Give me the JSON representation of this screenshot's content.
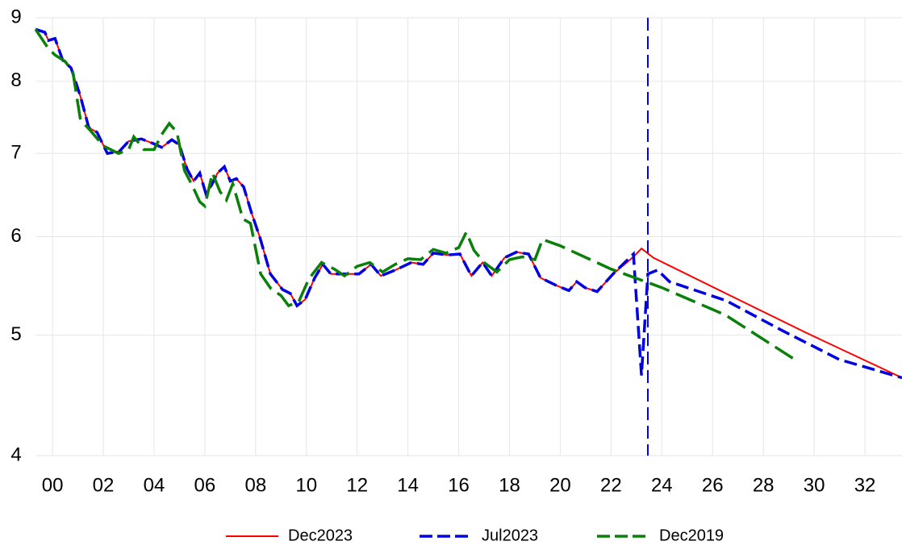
{
  "chart_data": {
    "type": "line",
    "log_y": true,
    "grid": true,
    "legend": "bottom",
    "xlim": [
      1999.33,
      2033.46
    ],
    "ylim": [
      4,
      9
    ],
    "xticks": [
      {
        "value": 2000,
        "label": "00"
      },
      {
        "value": 2002,
        "label": "02"
      },
      {
        "value": 2004,
        "label": "04"
      },
      {
        "value": 2006,
        "label": "06"
      },
      {
        "value": 2008,
        "label": "08"
      },
      {
        "value": 2010,
        "label": "10"
      },
      {
        "value": 2012,
        "label": "12"
      },
      {
        "value": 2014,
        "label": "14"
      },
      {
        "value": 2016,
        "label": "16"
      },
      {
        "value": 2018,
        "label": "18"
      },
      {
        "value": 2020,
        "label": "20"
      },
      {
        "value": 2022,
        "label": "22"
      },
      {
        "value": 2024,
        "label": "24"
      },
      {
        "value": 2026,
        "label": "26"
      },
      {
        "value": 2028,
        "label": "28"
      },
      {
        "value": 2030,
        "label": "30"
      },
      {
        "value": 2032,
        "label": "32"
      }
    ],
    "yticks": [
      4,
      5,
      6,
      7,
      8,
      9
    ],
    "vline": {
      "x": 2023.45,
      "color": "#0000e0"
    },
    "series": [
      {
        "name": "Dec2023",
        "color": "#ff0000",
        "dash": "none",
        "x": [
          1999.33,
          1999.7,
          1999.84,
          2000.1,
          2000.4,
          2000.73,
          2001.1,
          2001.43,
          2001.75,
          2002.16,
          2002.64,
          2003.0,
          2003.5,
          2003.97,
          2004.3,
          2004.7,
          2005.0,
          2005.3,
          2005.56,
          2005.8,
          2006.04,
          2006.26,
          2006.5,
          2006.77,
          2007.0,
          2007.24,
          2007.53,
          2007.85,
          2008.17,
          2008.58,
          2009.06,
          2009.37,
          2009.63,
          2009.95,
          2010.33,
          2010.65,
          2010.96,
          2011.3,
          2012.07,
          2012.55,
          2012.93,
          2013.5,
          2014.14,
          2014.6,
          2015.0,
          2015.56,
          2016.05,
          2016.5,
          2016.94,
          2017.3,
          2017.8,
          2018.27,
          2018.75,
          2019.22,
          2019.86,
          2020.34,
          2020.65,
          2020.97,
          2021.45,
          2022.08,
          2022.88,
          2023.2,
          2023.67,
          2026.53,
          2029.7,
          2033.46
        ],
        "values": [
          8.81,
          8.76,
          8.63,
          8.66,
          8.32,
          8.2,
          7.78,
          7.34,
          7.28,
          7.0,
          7.03,
          7.16,
          7.19,
          7.13,
          7.08,
          7.18,
          7.11,
          6.8,
          6.65,
          6.75,
          6.5,
          6.6,
          6.75,
          6.83,
          6.65,
          6.68,
          6.58,
          6.26,
          5.99,
          5.6,
          5.44,
          5.4,
          5.28,
          5.34,
          5.56,
          5.7,
          5.6,
          5.6,
          5.6,
          5.7,
          5.58,
          5.64,
          5.72,
          5.7,
          5.82,
          5.8,
          5.81,
          5.58,
          5.72,
          5.58,
          5.77,
          5.83,
          5.81,
          5.56,
          5.48,
          5.43,
          5.52,
          5.46,
          5.42,
          5.6,
          5.78,
          5.87,
          5.77,
          5.4,
          5.02,
          4.62
        ]
      },
      {
        "name": "Jul2023",
        "color": "#0000e0",
        "dash": "16,7",
        "x": [
          1999.33,
          1999.7,
          1999.84,
          2000.1,
          2000.4,
          2000.73,
          2001.1,
          2001.43,
          2001.75,
          2002.16,
          2002.64,
          2003.0,
          2003.5,
          2003.97,
          2004.3,
          2004.7,
          2005.0,
          2005.3,
          2005.56,
          2005.8,
          2006.04,
          2006.26,
          2006.5,
          2006.77,
          2007.0,
          2007.24,
          2007.53,
          2007.85,
          2008.17,
          2008.58,
          2009.06,
          2009.37,
          2009.63,
          2009.95,
          2010.33,
          2010.65,
          2010.96,
          2011.3,
          2012.07,
          2012.55,
          2012.93,
          2013.5,
          2014.14,
          2014.6,
          2015.0,
          2015.56,
          2016.05,
          2016.5,
          2016.94,
          2017.3,
          2017.8,
          2018.27,
          2018.75,
          2019.22,
          2019.86,
          2020.34,
          2020.65,
          2020.97,
          2021.45,
          2022.08,
          2022.88,
          2023.2,
          2023.45,
          2023.83,
          2024.3,
          2026.53,
          2028.76,
          2030.98,
          2033.46
        ],
        "values": [
          8.81,
          8.76,
          8.63,
          8.66,
          8.32,
          8.2,
          7.78,
          7.34,
          7.28,
          7.0,
          7.03,
          7.16,
          7.19,
          7.13,
          7.08,
          7.18,
          7.11,
          6.8,
          6.65,
          6.75,
          6.5,
          6.6,
          6.75,
          6.83,
          6.65,
          6.68,
          6.58,
          6.26,
          5.99,
          5.6,
          5.44,
          5.4,
          5.28,
          5.34,
          5.56,
          5.7,
          5.6,
          5.6,
          5.6,
          5.7,
          5.58,
          5.64,
          5.72,
          5.7,
          5.82,
          5.8,
          5.81,
          5.58,
          5.72,
          5.58,
          5.77,
          5.83,
          5.81,
          5.56,
          5.48,
          5.43,
          5.52,
          5.46,
          5.42,
          5.6,
          5.81,
          4.64,
          5.6,
          5.64,
          5.52,
          5.33,
          5.04,
          4.78,
          4.62
        ]
      },
      {
        "name": "Dec2019",
        "color": "#0a800a",
        "dash": "26,9",
        "x": [
          1999.33,
          1999.84,
          2000.1,
          2000.5,
          2000.8,
          2001.1,
          2001.5,
          2002.0,
          2002.6,
          2003.0,
          2003.2,
          2003.6,
          2004.0,
          2004.3,
          2004.6,
          2004.9,
          2005.2,
          2005.5,
          2005.8,
          2006.0,
          2006.3,
          2006.6,
          2006.85,
          2007.1,
          2007.5,
          2007.8,
          2008.2,
          2008.6,
          2009.0,
          2009.3,
          2009.7,
          2010.1,
          2010.6,
          2011.1,
          2011.5,
          2012.0,
          2012.5,
          2013.0,
          2013.5,
          2014.0,
          2014.5,
          2015.0,
          2015.5,
          2016.0,
          2016.3,
          2016.6,
          2017.0,
          2017.5,
          2018.0,
          2018.5,
          2019.0,
          2019.3,
          2020.0,
          2022.0,
          2024.0,
          2026.5,
          2029.23
        ],
        "values": [
          8.81,
          8.5,
          8.4,
          8.3,
          8.14,
          7.45,
          7.3,
          7.1,
          7.0,
          7.05,
          7.22,
          7.05,
          7.05,
          7.25,
          7.4,
          7.28,
          6.78,
          6.6,
          6.4,
          6.35,
          6.75,
          6.52,
          6.42,
          6.62,
          6.2,
          6.15,
          5.6,
          5.45,
          5.38,
          5.28,
          5.32,
          5.55,
          5.72,
          5.65,
          5.58,
          5.68,
          5.72,
          5.62,
          5.7,
          5.76,
          5.75,
          5.86,
          5.82,
          5.88,
          6.05,
          5.85,
          5.72,
          5.62,
          5.75,
          5.78,
          5.75,
          5.97,
          5.9,
          5.65,
          5.46,
          5.19,
          4.78
        ]
      }
    ]
  }
}
